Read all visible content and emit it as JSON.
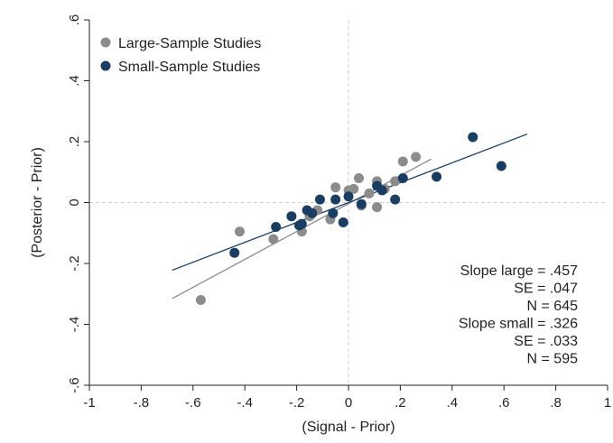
{
  "chart_data": {
    "type": "scatter",
    "title": "",
    "xlabel": "(Signal - Prior)",
    "ylabel": "(Posterior - Prior)",
    "xlim": [
      -1.0,
      1.0
    ],
    "ylim": [
      -0.6,
      0.6
    ],
    "x_ticks": [
      -1.0,
      -0.8,
      -0.6,
      -0.4,
      -0.2,
      0.0,
      0.2,
      0.4,
      0.6,
      0.8,
      1.0
    ],
    "x_tick_labels": [
      "-1",
      "-.8",
      "-.6",
      "-.4",
      "-.2",
      "0",
      ".2",
      ".4",
      ".6",
      ".8",
      "1"
    ],
    "y_ticks": [
      -0.6,
      -0.4,
      -0.2,
      0.0,
      0.2,
      0.4,
      0.6
    ],
    "y_tick_labels": [
      "-.6",
      "-.4",
      "-.2",
      "0",
      ".2",
      ".4",
      ".6"
    ],
    "grid": false,
    "reference_lines": {
      "x": 0,
      "y": 0
    },
    "legend_position": "top-left",
    "series": [
      {
        "name": "Large-Sample Studies",
        "color": "#8c8c8c",
        "points": [
          [
            -0.57,
            -0.32
          ],
          [
            -0.42,
            -0.095
          ],
          [
            -0.29,
            -0.12
          ],
          [
            -0.18,
            -0.095
          ],
          [
            -0.15,
            -0.045
          ],
          [
            -0.12,
            -0.025
          ],
          [
            -0.07,
            -0.055
          ],
          [
            -0.05,
            0.05
          ],
          [
            0.0,
            0.04
          ],
          [
            0.02,
            0.045
          ],
          [
            0.04,
            0.08
          ],
          [
            0.05,
            -0.01
          ],
          [
            0.08,
            0.03
          ],
          [
            0.11,
            0.07
          ],
          [
            0.11,
            -0.015
          ],
          [
            0.14,
            0.045
          ],
          [
            0.18,
            0.07
          ],
          [
            0.21,
            0.135
          ],
          [
            0.26,
            0.15
          ]
        ],
        "fit_line": {
          "x": [
            -0.68,
            0.32
          ],
          "y": [
            -0.315,
            0.143
          ]
        }
      },
      {
        "name": "Small-Sample Studies",
        "color": "#1a3e62",
        "points": [
          [
            -0.44,
            -0.165
          ],
          [
            -0.28,
            -0.08
          ],
          [
            -0.22,
            -0.045
          ],
          [
            -0.19,
            -0.075
          ],
          [
            -0.18,
            -0.07
          ],
          [
            -0.16,
            -0.025
          ],
          [
            -0.14,
            -0.035
          ],
          [
            -0.11,
            0.01
          ],
          [
            -0.06,
            -0.035
          ],
          [
            -0.05,
            0.01
          ],
          [
            -0.02,
            -0.065
          ],
          [
            0.0,
            0.02
          ],
          [
            0.05,
            -0.005
          ],
          [
            0.11,
            0.055
          ],
          [
            0.13,
            0.04
          ],
          [
            0.18,
            0.01
          ],
          [
            0.21,
            0.08
          ],
          [
            0.34,
            0.085
          ],
          [
            0.48,
            0.215
          ],
          [
            0.59,
            0.12
          ]
        ],
        "fit_line": {
          "x": [
            -0.68,
            0.69
          ],
          "y": [
            -0.222,
            0.225
          ]
        }
      }
    ],
    "stats": [
      "Slope large = .457",
      "SE = .047",
      "N = 645",
      "Slope small = .326",
      "SE = .033",
      "N = 595"
    ]
  }
}
